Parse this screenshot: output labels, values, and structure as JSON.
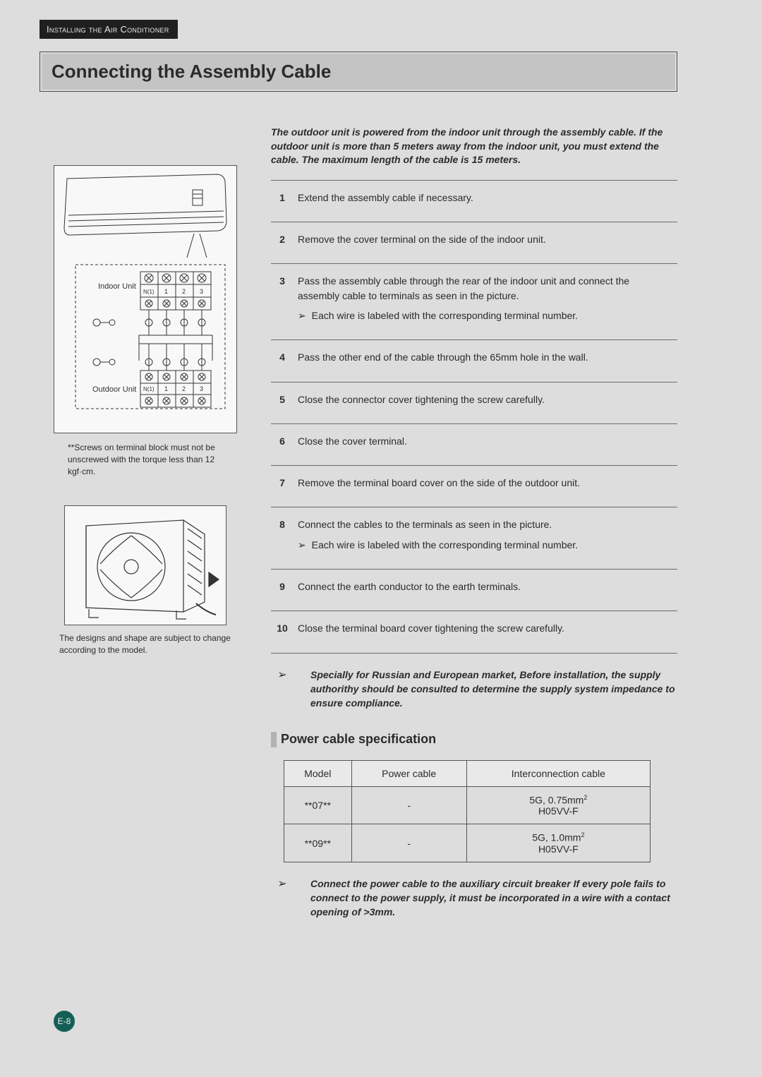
{
  "header": {
    "section_tab": "Installing the Air Conditioner",
    "title": "Connecting the Assembly Cable"
  },
  "left": {
    "diagram": {
      "indoor_label": "Indoor Unit",
      "outdoor_label": "Outdoor Unit",
      "terminal_labels": [
        "N(1)",
        "1",
        "2",
        "3"
      ]
    },
    "diagram_caption": "**Screws on terminal block must not be unscrewed with the torque less than 12 kgf·cm.",
    "outdoor_caption": "The designs and shape are subject to change according to the model."
  },
  "intro": "The outdoor unit is powered from the indoor unit through the assembly cable. If the outdoor unit is more than 5 meters away from the indoor unit, you must extend the cable. The maximum length of the cable is 15 meters.",
  "steps": [
    {
      "n": "1",
      "text": "Extend the assembly cable if necessary."
    },
    {
      "n": "2",
      "text": "Remove the cover terminal on the side of the indoor unit."
    },
    {
      "n": "3",
      "text": "Pass the assembly cable through the rear of the indoor unit and connect the assembly cable to terminals as seen in the picture.",
      "sub": "Each wire is labeled with the corresponding terminal number."
    },
    {
      "n": "4",
      "text": "Pass the other end of the cable through the 65mm hole in the wall."
    },
    {
      "n": "5",
      "text": "Close the connector cover tightening the screw carefully."
    },
    {
      "n": "6",
      "text": "Close the cover terminal."
    },
    {
      "n": "7",
      "text": "Remove the terminal board cover on the side of the outdoor unit."
    },
    {
      "n": "8",
      "text": "Connect the cables to the terminals as seen in the picture.",
      "sub": "Each wire is labeled with the corresponding terminal number."
    },
    {
      "n": "9",
      "text": "Connect the earth conductor to the earth terminals."
    },
    {
      "n": "10",
      "text": "Close the terminal board cover tightening the screw carefully."
    }
  ],
  "final_note": "Specially for Russian and European market, Before installation, the supply authorithy should be consulted to determine the supply system impedance to ensure compliance.",
  "subsection_title": "Power cable specification",
  "spec_table": {
    "columns": [
      "Model",
      "Power cable",
      "Interconnection cable"
    ],
    "rows": [
      {
        "model": "**07**",
        "power": "-",
        "inter_line1": "5G, 0.75mm",
        "inter_line2": "H05VV-F"
      },
      {
        "model": "**09**",
        "power": "-",
        "inter_line1": "5G, 1.0mm",
        "inter_line2": "H05VV-F"
      }
    ]
  },
  "spec_note": "Connect the power cable to the auxiliary circuit breaker If every pole fails to connect to the power supply, it must be incorporated in a wire with a contact opening of  >3mm.",
  "page_number": "E-8",
  "colors": {
    "page_bg": "#dcdddc",
    "tab_bg": "#1f1f1f",
    "title_bg": "#c3c4c3",
    "badge_bg": "#145f55",
    "rule": "#6b6b6b"
  }
}
